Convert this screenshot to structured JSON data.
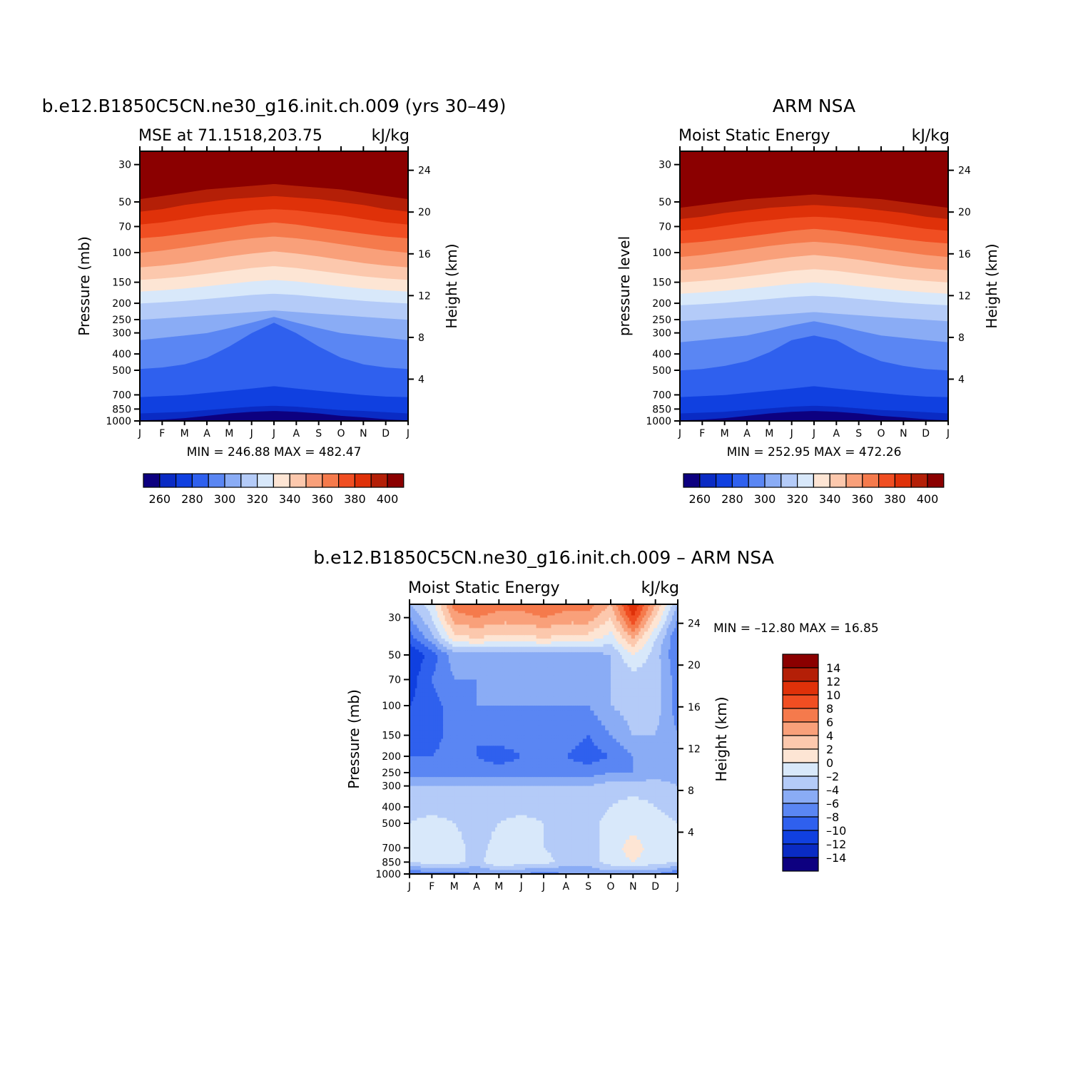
{
  "colors": {
    "mse_palette": [
      "#0d0080",
      "#0a2bc4",
      "#1040e0",
      "#2f60ee",
      "#5a86f3",
      "#8aacf5",
      "#b4cbf8",
      "#d8e8fa",
      "#fde5d4",
      "#fcc8ad",
      "#f9a07a",
      "#f57a4c",
      "#f04e22",
      "#df3109",
      "#b41f07",
      "#8b0000"
    ],
    "diff_palette": [
      "#0d0080",
      "#0a2bc4",
      "#1040e0",
      "#2f60ee",
      "#5a86f3",
      "#8aacf5",
      "#b4cbf8",
      "#d8e8fa",
      "#fde5d4",
      "#fcc8ad",
      "#f9a07a",
      "#f57a4c",
      "#f04e22",
      "#df3109",
      "#b41f07",
      "#8b0000"
    ]
  },
  "chart_data": [
    {
      "type": "heatmap",
      "title": "b.e12.B1850C5CN.ne30_g16.init.ch.009 (yrs 30–49)",
      "subtitle_left": "MSE at 71.1518,203.75",
      "subtitle_right": "kJ/kg",
      "ylabel": "Pressure (mb)",
      "y2label": "Height (km)",
      "x_ticks": [
        "J",
        "F",
        "M",
        "A",
        "M",
        "J",
        "J",
        "A",
        "S",
        "O",
        "N",
        "D",
        "J"
      ],
      "y_ticks": [
        "30",
        "50",
        "70",
        "100",
        "150",
        "200",
        "250",
        "300",
        "400",
        "500",
        "700",
        "850",
        "1000"
      ],
      "y_tick_values": [
        30,
        50,
        70,
        100,
        150,
        200,
        250,
        300,
        400,
        500,
        700,
        850,
        1000
      ],
      "y2_ticks": [
        "24",
        "20",
        "16",
        "12",
        "8",
        "4"
      ],
      "y2_tick_values": [
        24,
        20,
        16,
        12,
        8,
        4
      ],
      "ylim_mb": [
        1000,
        25
      ],
      "min_max_text": "MIN = 246.88 MAX = 482.47",
      "colorbar_ticks": [
        "260",
        "280",
        "300",
        "320",
        "340",
        "360",
        "380",
        "400"
      ],
      "colorbar_levels": [
        250,
        260,
        270,
        280,
        290,
        300,
        310,
        320,
        330,
        340,
        350,
        360,
        370,
        380,
        390,
        400
      ],
      "contour_pressure_mb": [
        [
          990,
          980,
          960,
          930,
          900,
          880,
          870,
          880,
          900,
          930,
          950,
          975,
          990
        ],
        [
          900,
          890,
          880,
          860,
          840,
          820,
          810,
          820,
          840,
          860,
          870,
          885,
          900
        ],
        [
          720,
          710,
          700,
          680,
          660,
          640,
          620,
          640,
          660,
          680,
          700,
          715,
          720
        ],
        [
          490,
          480,
          460,
          420,
          360,
          300,
          260,
          300,
          360,
          420,
          460,
          480,
          490
        ],
        [
          330,
          320,
          310,
          300,
          280,
          260,
          240,
          260,
          280,
          300,
          310,
          320,
          330
        ],
        [
          250,
          245,
          240,
          235,
          230,
          225,
          220,
          225,
          230,
          235,
          240,
          245,
          250
        ],
        [
          200,
          197,
          193,
          188,
          183,
          178,
          175,
          178,
          183,
          188,
          193,
          197,
          200
        ],
        [
          170,
          167,
          163,
          158,
          153,
          148,
          145,
          148,
          153,
          158,
          163,
          167,
          170
        ],
        [
          145,
          142,
          138,
          133,
          128,
          123,
          120,
          123,
          128,
          133,
          138,
          142,
          145
        ],
        [
          122,
          119,
          115,
          110,
          105,
          101,
          98,
          101,
          105,
          110,
          115,
          119,
          122
        ],
        [
          100,
          97,
          93,
          89,
          85,
          82,
          80,
          82,
          85,
          89,
          93,
          97,
          100
        ],
        [
          82,
          80,
          77,
          74,
          71,
          68,
          66,
          68,
          71,
          74,
          77,
          80,
          82
        ],
        [
          68,
          66,
          63,
          60,
          58,
          56,
          55,
          56,
          58,
          60,
          63,
          66,
          68
        ],
        [
          57,
          55,
          52,
          50,
          48,
          47,
          46,
          47,
          48,
          50,
          52,
          55,
          57
        ],
        [
          48,
          46,
          44,
          42,
          41,
          40,
          39,
          40,
          41,
          42,
          44,
          46,
          48
        ]
      ]
    },
    {
      "type": "heatmap",
      "title": "ARM NSA",
      "subtitle_left": "Moist Static Energy",
      "subtitle_right": "kJ/kg",
      "ylabel": "pressure level",
      "y2label": "Height (km)",
      "x_ticks": [
        "J",
        "F",
        "M",
        "A",
        "M",
        "J",
        "J",
        "A",
        "S",
        "O",
        "N",
        "D",
        "J"
      ],
      "y_ticks": [
        "30",
        "50",
        "70",
        "100",
        "150",
        "200",
        "250",
        "300",
        "400",
        "500",
        "700",
        "850",
        "1000"
      ],
      "y_tick_values": [
        30,
        50,
        70,
        100,
        150,
        200,
        250,
        300,
        400,
        500,
        700,
        850,
        1000
      ],
      "y2_ticks": [
        "24",
        "20",
        "16",
        "12",
        "8",
        "4"
      ],
      "y2_tick_values": [
        24,
        20,
        16,
        12,
        8,
        4
      ],
      "ylim_mb": [
        1000,
        25
      ],
      "min_max_text": "MIN = 252.95 MAX = 472.26",
      "colorbar_ticks": [
        "260",
        "280",
        "300",
        "320",
        "340",
        "360",
        "380",
        "400"
      ],
      "colorbar_levels": [
        250,
        260,
        270,
        280,
        290,
        300,
        310,
        320,
        330,
        340,
        350,
        360,
        370,
        380,
        390,
        400
      ],
      "contour_pressure_mb": [
        [
          990,
          980,
          960,
          930,
          900,
          880,
          870,
          880,
          900,
          930,
          950,
          975,
          990
        ],
        [
          900,
          890,
          880,
          860,
          840,
          820,
          810,
          820,
          840,
          860,
          870,
          885,
          900
        ],
        [
          720,
          710,
          700,
          680,
          660,
          640,
          620,
          640,
          660,
          680,
          700,
          715,
          720
        ],
        [
          500,
          490,
          470,
          440,
          390,
          330,
          310,
          330,
          390,
          440,
          470,
          490,
          500
        ],
        [
          340,
          330,
          320,
          310,
          290,
          270,
          255,
          270,
          290,
          310,
          320,
          330,
          340
        ],
        [
          255,
          250,
          245,
          240,
          235,
          230,
          225,
          230,
          235,
          240,
          245,
          250,
          255
        ],
        [
          205,
          202,
          198,
          193,
          188,
          183,
          180,
          183,
          188,
          193,
          198,
          202,
          205
        ],
        [
          175,
          172,
          168,
          163,
          158,
          153,
          150,
          153,
          158,
          163,
          168,
          172,
          175
        ],
        [
          150,
          147,
          143,
          138,
          133,
          128,
          125,
          128,
          133,
          138,
          143,
          147,
          150
        ],
        [
          127,
          124,
          120,
          115,
          110,
          106,
          103,
          106,
          110,
          115,
          120,
          124,
          127
        ],
        [
          106,
          103,
          99,
          95,
          91,
          88,
          86,
          88,
          91,
          95,
          99,
          103,
          106
        ],
        [
          88,
          86,
          83,
          80,
          77,
          74,
          72,
          74,
          77,
          80,
          83,
          86,
          88
        ],
        [
          74,
          72,
          69,
          66,
          64,
          62,
          61,
          62,
          64,
          66,
          69,
          72,
          74
        ],
        [
          63,
          61,
          58,
          56,
          54,
          53,
          52,
          53,
          54,
          56,
          58,
          61,
          63
        ],
        [
          54,
          52,
          50,
          48,
          47,
          46,
          45,
          46,
          47,
          48,
          50,
          52,
          54
        ]
      ]
    },
    {
      "type": "heatmap",
      "title": "b.e12.B1850C5CN.ne30_g16.init.ch.009 – ARM NSA",
      "subtitle_left": "Moist Static Energy",
      "subtitle_right": "kJ/kg",
      "ylabel": "Pressure (mb)",
      "y2label": "Height (km)",
      "x_ticks": [
        "J",
        "F",
        "M",
        "A",
        "M",
        "J",
        "J",
        "A",
        "S",
        "O",
        "N",
        "D",
        "J"
      ],
      "y_ticks": [
        "30",
        "50",
        "70",
        "100",
        "150",
        "200",
        "250",
        "300",
        "400",
        "500",
        "700",
        "850",
        "1000"
      ],
      "y_tick_values": [
        30,
        50,
        70,
        100,
        150,
        200,
        250,
        300,
        400,
        500,
        700,
        850,
        1000
      ],
      "y2_ticks": [
        "24",
        "20",
        "16",
        "12",
        "8",
        "4"
      ],
      "y2_tick_values": [
        24,
        20,
        16,
        12,
        8,
        4
      ],
      "ylim_mb": [
        1000,
        25
      ],
      "min_max_text": "MIN = –12.80 MAX =   16.85",
      "colorbar_ticks": [
        "14",
        "12",
        "10",
        "8",
        "6",
        "4",
        "2",
        "0",
        "–2",
        "–4",
        "–6",
        "–8",
        "–10",
        "–12",
        "–14"
      ],
      "colorbar_levels": [
        -14,
        -12,
        -10,
        -8,
        -6,
        -4,
        -2,
        0,
        2,
        4,
        6,
        8,
        10,
        12,
        14
      ],
      "grid_pressure_mb": [
        25,
        30,
        40,
        50,
        70,
        100,
        150,
        200,
        250,
        300,
        400,
        500,
        700,
        850,
        1000
      ],
      "grid_values": [
        [
          -4,
          -1,
          7,
          8,
          7,
          7,
          8,
          7,
          7,
          4,
          12,
          4,
          -4
        ],
        [
          -6,
          -2,
          5,
          6,
          5,
          5,
          6,
          5,
          5,
          2,
          10,
          2,
          -6
        ],
        [
          -9,
          -5,
          1,
          2,
          1,
          1,
          2,
          1,
          1,
          -1,
          4,
          -2,
          -8
        ],
        [
          -12,
          -9,
          -5,
          -5,
          -5,
          -5,
          -5,
          -5,
          -5,
          -4,
          0,
          -3,
          -8
        ],
        [
          -11,
          -8,
          -6,
          -6,
          -5,
          -5,
          -6,
          -5,
          -5,
          -4,
          -3,
          -3,
          -7
        ],
        [
          -10,
          -9,
          -7,
          -6,
          -6,
          -6,
          -6,
          -6,
          -6,
          -4,
          -3,
          -3,
          -7
        ],
        [
          -9,
          -9,
          -7,
          -8,
          -7,
          -7,
          -7,
          -7,
          -8,
          -6,
          -4,
          -4,
          -6
        ],
        [
          -8,
          -8,
          -7,
          -8,
          -9,
          -8,
          -7,
          -8,
          -9,
          -8,
          -6,
          -5,
          -6
        ],
        [
          -7,
          -7,
          -7,
          -7,
          -7,
          -7,
          -7,
          -7,
          -7,
          -6,
          -6,
          -5,
          -5
        ],
        [
          -4,
          -4,
          -4,
          -4,
          -4,
          -4,
          -4,
          -4,
          -4,
          -3,
          -3,
          -3,
          -4
        ],
        [
          -3,
          -3,
          -3,
          -4,
          -3,
          -3,
          -3,
          -3,
          -4,
          -2,
          -1,
          -2,
          -3
        ],
        [
          -2,
          -1,
          -2,
          -3,
          -2,
          -1,
          -2,
          -3,
          -3,
          -1,
          -1,
          -1,
          -2
        ],
        [
          -2,
          -1,
          -1,
          -3,
          -1,
          -1,
          -2,
          -3,
          -3,
          -1,
          1,
          -1,
          -2
        ],
        [
          -2,
          -1,
          -1,
          -3,
          0,
          -1,
          -1,
          -3,
          -3,
          -1,
          0,
          -1,
          -2
        ],
        [
          -8,
          -7,
          -7,
          -6,
          -6,
          -6,
          -7,
          -6,
          -6,
          -5,
          -6,
          -6,
          -8
        ]
      ]
    }
  ]
}
